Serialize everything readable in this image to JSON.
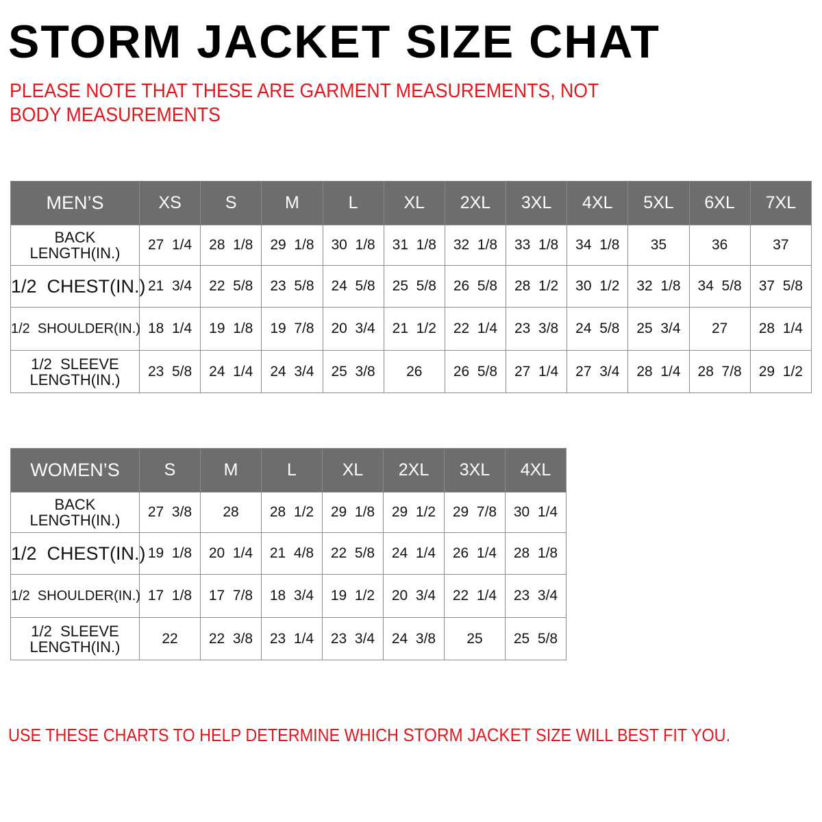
{
  "title": "STORM JACKET SIZE CHAT",
  "note": "PLEASE NOTE THAT THESE ARE GARMENT MEASUREMENTS, NOT BODY MEASUREMENTS",
  "colors": {
    "header_bg": "#6d6d6d",
    "accent_red": "#e2161b"
  },
  "mens": {
    "label": "MEN’S",
    "sizes": [
      "XS",
      "S",
      "M",
      "L",
      "XL",
      "2XL",
      "3XL",
      "4XL",
      "5XL",
      "6XL",
      "7XL"
    ],
    "rows": [
      {
        "label": "BACK\nLENGTH(IN.)",
        "values": [
          "27  1/4",
          "28  1/8",
          "29  1/8",
          "30  1/8",
          "31  1/8",
          "32  1/8",
          "33  1/8",
          "34  1/8",
          "35",
          "36",
          "37"
        ]
      },
      {
        "label": "1/2  CHEST(IN.)",
        "values": [
          "21  3/4",
          "22  5/8",
          "23  5/8",
          "24  5/8",
          "25  5/8",
          "26  5/8",
          "28  1/2",
          "30  1/2",
          "32  1/8",
          "34  5/8",
          "37  5/8"
        ]
      },
      {
        "label": "1/2  SHOULDER(IN.)",
        "values": [
          "18  1/4",
          "19  1/8",
          "19  7/8",
          "20  3/4",
          "21  1/2",
          "22  1/4",
          "23  3/8",
          "24  5/8",
          "25  3/4",
          "27",
          "28  1/4"
        ]
      },
      {
        "label": "1/2  SLEEVE\nLENGTH(IN.)",
        "values": [
          "23  5/8",
          "24  1/4",
          "24  3/4",
          "25  3/8",
          "26",
          "26  5/8",
          "27  1/4",
          "27  3/4",
          "28  1/4",
          "28  7/8",
          "29  1/2"
        ]
      }
    ]
  },
  "womens": {
    "label": "WOMEN’S",
    "sizes": [
      "S",
      "M",
      "L",
      "XL",
      "2XL",
      "3XL",
      "4XL"
    ],
    "rows": [
      {
        "label": "BACK\nLENGTH(IN.)",
        "values": [
          "27  3/8",
          "28",
          "28  1/2",
          "29  1/8",
          "29  1/2",
          "29  7/8",
          "30  1/4"
        ]
      },
      {
        "label": "1/2  CHEST(IN.)",
        "values": [
          "19  1/8",
          "20  1/4",
          "21  4/8",
          "22  5/8",
          "24  1/4",
          "26  1/4",
          "28  1/8"
        ]
      },
      {
        "label": "1/2  SHOULDER(IN.)",
        "values": [
          "17  1/8",
          "17  7/8",
          "18  3/4",
          "19  1/2",
          "20  3/4",
          "22  1/4",
          "23  3/4"
        ]
      },
      {
        "label": "1/2  SLEEVE\nLENGTH(IN.)",
        "values": [
          "22",
          "22  3/8",
          "23  1/4",
          "23  3/4",
          "24  3/8",
          "25",
          "25  5/8"
        ]
      }
    ]
  },
  "footer": {
    "part1": "USE THESE CHARTS TO HELP DETERMINE WHICH ",
    "product": "STORM JACKET",
    "part2": "  SIZE WILL BEST FIT YOU."
  }
}
